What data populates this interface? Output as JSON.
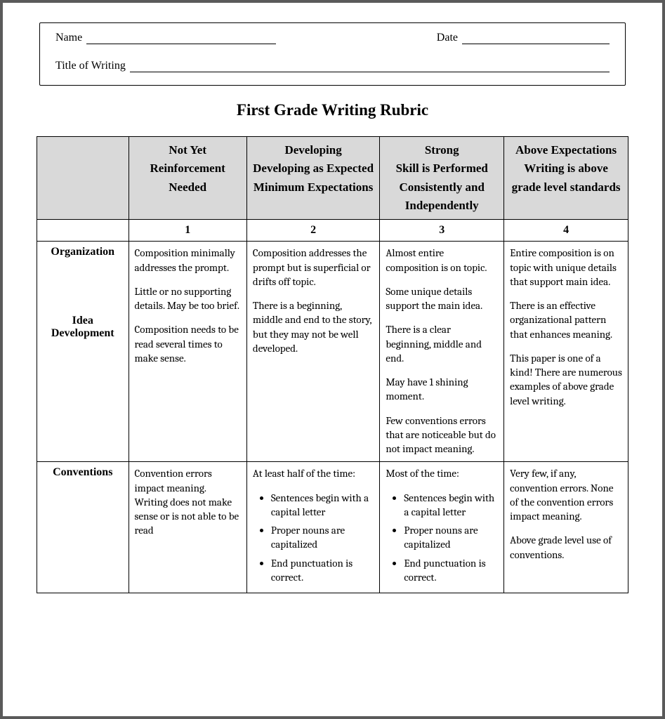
{
  "header": {
    "name_label": "Name",
    "date_label": "Date",
    "title_label": "Title of Writing"
  },
  "doc_title": "First Grade Writing Rubric",
  "columns": [
    {
      "title": "Not Yet",
      "subtitle": "Reinforcement Needed",
      "score": "1"
    },
    {
      "title": "Developing",
      "subtitle": "Developing as Expected Minimum Expectations",
      "score": "2"
    },
    {
      "title": "Strong",
      "subtitle": "Skill is Performed Consistently and Independently",
      "score": "3"
    },
    {
      "title": "Above Expectations",
      "subtitle": "Writing is above grade level standards",
      "score": "4"
    }
  ],
  "rows": {
    "org": {
      "label1": "Organization",
      "label2": "Idea Development",
      "c1": {
        "p1": "Composition minimally addresses the prompt.",
        "p2": "Little or no supporting details. May be too brief.",
        "p3": "Composition needs to be read several times to make sense."
      },
      "c2": {
        "p1": "Composition addresses the prompt but is superficial or drifts off topic.",
        "p2": "There is a beginning, middle and end to the story, but they may not be well developed."
      },
      "c3": {
        "p1": "Almost entire composition is on topic.",
        "p2": "Some unique details support the main idea.",
        "p3": "There is a clear beginning, middle and end.",
        "p4": "May have 1 shining moment.",
        "p5": "Few conventions errors that are noticeable but do not impact meaning."
      },
      "c4": {
        "p1": "Entire composition is on topic with unique details that support main idea.",
        "p2": "There is an effective organizational pattern that enhances meaning.",
        "p3": "This paper is one of a kind! There are numerous examples of above grade level writing."
      }
    },
    "conv": {
      "label": "Conventions",
      "c1": {
        "p1": "Convention errors impact meaning. Writing does not make sense or is not able to be read"
      },
      "c2": {
        "lead": "At least half of the time:",
        "b1": "Sentences begin with a capital letter",
        "b2": "Proper nouns are capitalized",
        "b3": "End punctuation is correct."
      },
      "c3": {
        "lead": "Most of the time:",
        "b1": "Sentences begin with a capital letter",
        "b2": "Proper nouns are capitalized",
        "b3": "End punctuation is correct."
      },
      "c4": {
        "p1": "Very few, if any, convention errors. None of the convention errors impact meaning.",
        "p2": "Above grade level use of conventions."
      }
    }
  }
}
